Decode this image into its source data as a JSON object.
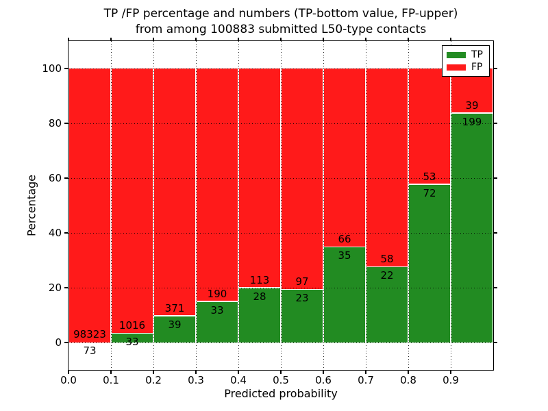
{
  "chart_data": {
    "type": "bar",
    "variant": "stacked-100-percent-histogram",
    "title_line1": "TP /FP percentage and numbers (TP-bottom value, FP-upper)",
    "title_line2": "from among 100883 submitted L50-type contacts",
    "xlabel": "Predicted probability",
    "ylabel": "Percentage",
    "xlim": [
      0.0,
      1.0
    ],
    "ylim": [
      -10,
      110
    ],
    "bin_width": 0.1,
    "grid": "dotted",
    "x_tick_labels": [
      "0.0",
      "0.1",
      "0.2",
      "0.3",
      "0.4",
      "0.5",
      "0.6",
      "0.7",
      "0.8",
      "0.9"
    ],
    "y_tick_values": [
      0,
      20,
      40,
      60,
      80,
      100
    ],
    "categories": [
      "0.0-0.1",
      "0.1-0.2",
      "0.2-0.3",
      "0.3-0.4",
      "0.4-0.5",
      "0.5-0.6",
      "0.6-0.7",
      "0.7-0.8",
      "0.8-0.9",
      "0.9-1.0"
    ],
    "series": [
      {
        "name": "TP",
        "color": "#228b22",
        "counts": [
          73,
          33,
          39,
          33,
          28,
          23,
          35,
          22,
          72,
          199
        ],
        "percent": [
          0.07,
          3.15,
          9.51,
          14.8,
          19.86,
          19.17,
          34.65,
          27.5,
          57.6,
          83.61
        ]
      },
      {
        "name": "FP",
        "color": "#ff1a1a",
        "counts": [
          98323,
          1016,
          371,
          190,
          113,
          97,
          66,
          58,
          53,
          39
        ],
        "percent": [
          99.93,
          96.85,
          90.49,
          85.2,
          80.14,
          80.83,
          65.35,
          72.5,
          42.4,
          16.39
        ]
      }
    ],
    "total_contacts": 100883,
    "legend": {
      "position": "upper-right",
      "entries": [
        {
          "label": "TP",
          "color": "#228b22"
        },
        {
          "label": "FP",
          "color": "#ff1a1a"
        }
      ]
    }
  }
}
